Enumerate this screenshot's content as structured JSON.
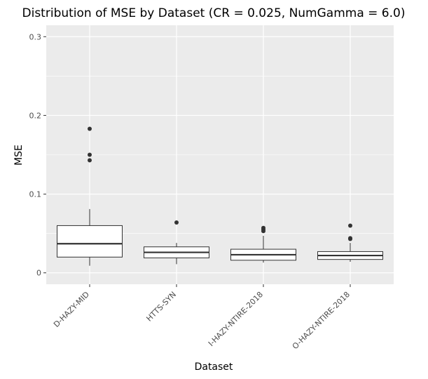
{
  "chart_data": {
    "type": "boxplot",
    "title": "Distribution of MSE by Dataset (CR = 0.025, NumGamma = 6.0)",
    "xlabel": "Dataset",
    "ylabel": "MSE",
    "ylim": [
      -0.0145,
      0.3145
    ],
    "y_ticks": [
      0,
      0.1,
      0.2,
      0.3
    ],
    "y_tick_labels": [
      "0",
      "0.1",
      "0.2",
      "0.3"
    ],
    "grid": true,
    "categories": [
      "D-HAZY-MID",
      "HTTS-SYN",
      "I-HAZY-NTIRE-2018",
      "O-HAZY-NTIRE-2018"
    ],
    "boxes": [
      {
        "category": "D-HAZY-MID",
        "whisker_low": 0.009,
        "q1": 0.02,
        "median": 0.037,
        "q3": 0.06,
        "whisker_high": 0.081,
        "outliers": [
          0.183,
          0.15,
          0.143
        ]
      },
      {
        "category": "HTTS-SYN",
        "whisker_low": 0.011,
        "q1": 0.019,
        "median": 0.026,
        "q3": 0.033,
        "whisker_high": 0.038,
        "outliers": [
          0.064
        ]
      },
      {
        "category": "I-HAZY-NTIRE-2018",
        "whisker_low": 0.013,
        "q1": 0.016,
        "median": 0.023,
        "q3": 0.03,
        "whisker_high": 0.047,
        "outliers": [
          0.057,
          0.055,
          0.053
        ]
      },
      {
        "category": "O-HAZY-NTIRE-2018",
        "whisker_low": 0.014,
        "q1": 0.017,
        "median": 0.022,
        "q3": 0.027,
        "whisker_high": 0.038,
        "outliers": [
          0.06,
          0.044,
          0.043
        ]
      }
    ],
    "colors": {
      "panel": "#ebebeb",
      "grid": "#ffffff",
      "box_fill": "#ffffff",
      "box_line": "#333333",
      "tick": "#333333"
    }
  }
}
